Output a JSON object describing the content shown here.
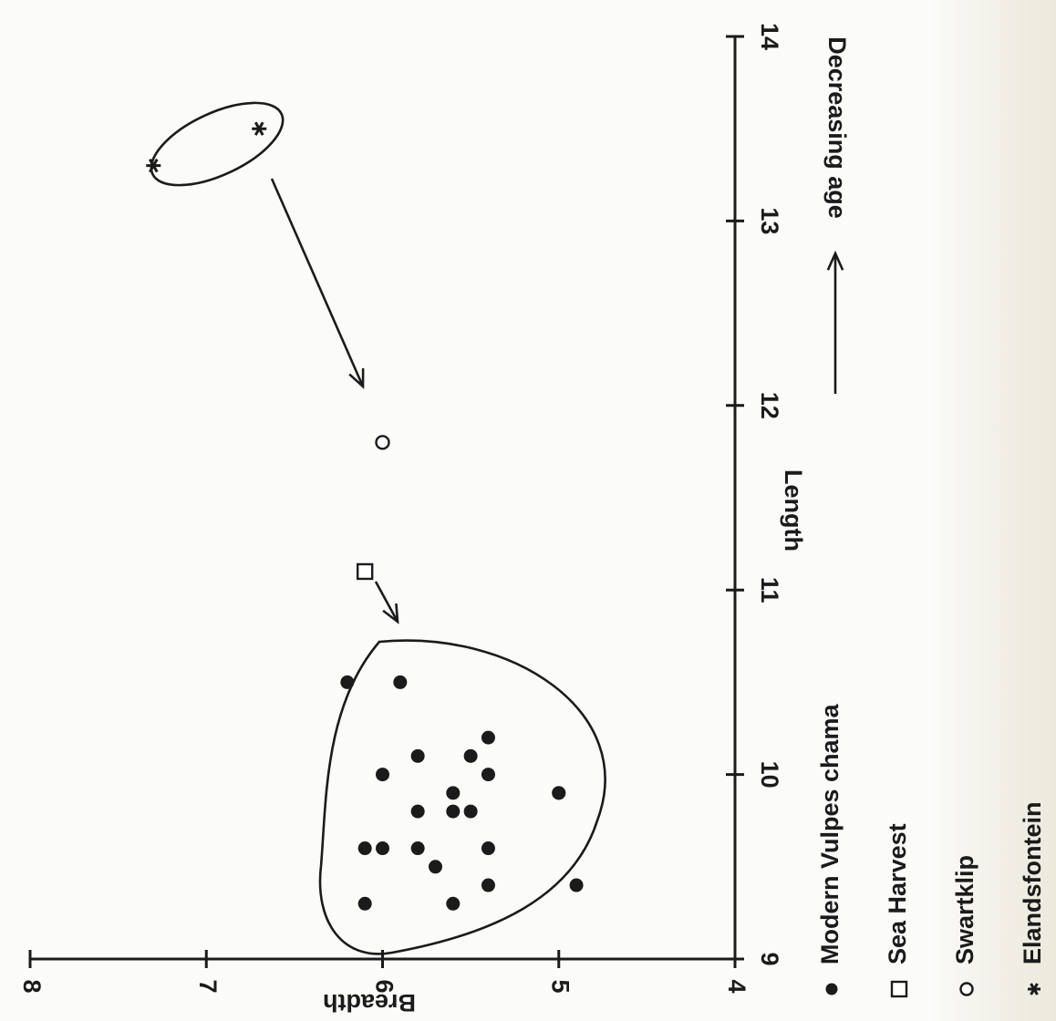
{
  "chart_data": {
    "type": "scatter",
    "title": "",
    "xlabel": "Length",
    "ylabel": "Breadth",
    "xlim": [
      9,
      14
    ],
    "ylim": [
      4,
      8
    ],
    "x_ticks": [
      9,
      10,
      11,
      12,
      13,
      14
    ],
    "y_ticks": [
      4,
      5,
      6,
      7,
      8
    ],
    "x_tick_labels": [
      "9",
      "10",
      "11",
      "12",
      "13",
      "14"
    ],
    "y_tick_labels": [
      "4",
      "5",
      "6",
      "7",
      "8"
    ],
    "grid": false,
    "legend_position": "bottom",
    "annotation": "Decreasing age",
    "series": [
      {
        "name": "Modern Vulpes chama",
        "marker": "filled-circle",
        "x": [
          10.5,
          10.5,
          10.2,
          10.1,
          10.1,
          10.0,
          10.0,
          9.9,
          9.9,
          9.8,
          9.8,
          9.8,
          9.6,
          9.6,
          9.6,
          9.6,
          9.5,
          9.4,
          9.3,
          9.3,
          9.9,
          9.4
        ],
        "y": [
          6.2,
          5.9,
          5.4,
          5.8,
          5.5,
          6.0,
          5.4,
          5.6,
          5.0,
          5.8,
          5.6,
          5.5,
          6.1,
          6.0,
          5.8,
          5.4,
          5.7,
          5.4,
          6.1,
          5.6,
          5.0,
          4.9
        ]
      },
      {
        "name": "Sea Harvest",
        "marker": "open-square",
        "x": [
          11.1
        ],
        "y": [
          6.1
        ]
      },
      {
        "name": "Swartklip",
        "marker": "open-circle",
        "x": [
          11.8
        ],
        "y": [
          6.0
        ]
      },
      {
        "name": "Elandsfontein",
        "marker": "star",
        "x": [
          13.3,
          13.5
        ],
        "y": [
          7.3,
          6.7
        ]
      }
    ]
  }
}
